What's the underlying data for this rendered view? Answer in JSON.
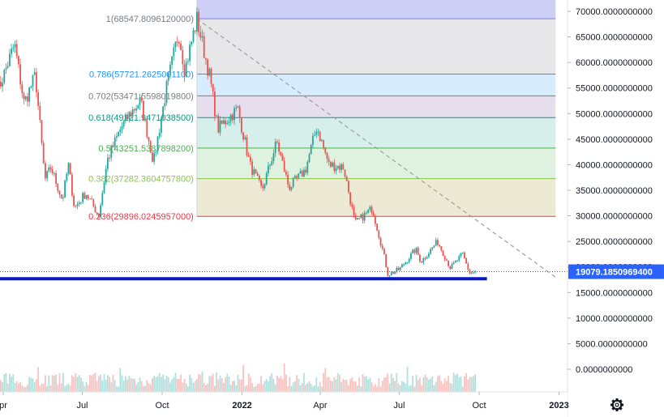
{
  "chart_data": {
    "type": "candlestick",
    "price_axis": {
      "ticks": [
        {
          "value": 70000,
          "label": "70000.0000000000"
        },
        {
          "value": 65000,
          "label": "65000.0000000000"
        },
        {
          "value": 60000,
          "label": "60000.0000000000"
        },
        {
          "value": 55000,
          "label": "55000.0000000000"
        },
        {
          "value": 50000,
          "label": "50000.0000000000"
        },
        {
          "value": 45000,
          "label": "45000.0000000000"
        },
        {
          "value": 40000,
          "label": "40000.0000000000"
        },
        {
          "value": 35000,
          "label": "35000.0000000000"
        },
        {
          "value": 30000,
          "label": "30000.0000000000"
        },
        {
          "value": 25000,
          "label": "25000.0000000000"
        },
        {
          "value": 20000,
          "label": "20000.0000000000"
        },
        {
          "value": 15000,
          "label": "15000.0000000000"
        },
        {
          "value": 10000,
          "label": "10000.0000000000"
        },
        {
          "value": 5000,
          "label": "5000.0000000000"
        },
        {
          "value": 0,
          "label": "0.0000000000"
        }
      ],
      "range": [
        -1500,
        72000
      ]
    },
    "time_axis": {
      "ticks": [
        {
          "label": "pr",
          "date": "2021-04-01",
          "bold": false
        },
        {
          "label": "Jul",
          "date": "2021-07-01",
          "bold": false
        },
        {
          "label": "Oct",
          "date": "2021-10-01",
          "bold": false
        },
        {
          "label": "2022",
          "date": "2022-01-01",
          "bold": true
        },
        {
          "label": "Apr",
          "date": "2022-04-01",
          "bold": false
        },
        {
          "label": "Jul",
          "date": "2022-07-01",
          "bold": false
        },
        {
          "label": "Oct",
          "date": "2022-10-01",
          "bold": false
        },
        {
          "label": "2023",
          "date": "2023-01-01",
          "bold": true
        }
      ]
    },
    "current_price": {
      "value": 19079.18509694,
      "label": "19079.1850969400",
      "color": "#2962ff"
    },
    "support_line": {
      "value": 17700,
      "color": "#0c19c9",
      "end_date": "2022-10-10"
    },
    "trend_line": {
      "start": {
        "date": "2021-11-10",
        "value": 68547.8
      },
      "end": {
        "date": "2022-12-28",
        "value": 18000
      },
      "color": "#9e9e9e"
    },
    "fibonacci": {
      "start_date": "2021-11-10",
      "end_date": "2022-12-28",
      "levels": [
        {
          "ratio": "1",
          "price": 68547.809612,
          "label": "1(68547.8096120000)",
          "color": "#787b86",
          "fill": "rgba(120,123,134,0.18)"
        },
        {
          "ratio": "0.786",
          "price": 57721.26250011,
          "label": "0.786(57721.2625001100)",
          "color": "#2196f3",
          "fill": "rgba(33,150,243,0.18)"
        },
        {
          "ratio": "0.702",
          "price": 53471.55980198,
          "label": "0.702(53471.5598019800)",
          "color": "#787b86",
          "fill": "rgba(142,104,168,0.22)"
        },
        {
          "ratio": "0.618",
          "price": 49221.94710385,
          "label": "0.618(49221.9471038500)",
          "color": "#089981",
          "fill": "rgba(8,153,129,0.16)"
        },
        {
          "ratio": "0.5",
          "price": 43251.53878982,
          "label": "0.5(43251.5387898200)",
          "color": "#4caf50",
          "fill": "rgba(76,175,80,0.18)"
        },
        {
          "ratio": "0.382",
          "price": 37282.36047578,
          "label": "0.382(37282.3604757800)",
          "color": "#8bc34a",
          "fill": "rgba(170,160,60,0.22)"
        },
        {
          "ratio": "0.236",
          "price": 29896.0245957,
          "label": "0.236(29896.0245957000)",
          "color": "#f23645",
          "fill": "rgba(200,140,60,0.28)"
        }
      ],
      "top_band": {
        "price_to": 72000,
        "fill": "rgba(98,108,220,0.32)",
        "line_color": "#7b7ff0"
      }
    },
    "price_path": [
      {
        "date": "2021-03-25",
        "value": 54000
      },
      {
        "date": "2021-04-14",
        "value": 63500
      },
      {
        "date": "2021-04-25",
        "value": 52000
      },
      {
        "date": "2021-05-08",
        "value": 57500
      },
      {
        "date": "2021-05-19",
        "value": 37000
      },
      {
        "date": "2021-05-26",
        "value": 39500
      },
      {
        "date": "2021-06-08",
        "value": 33000
      },
      {
        "date": "2021-06-15",
        "value": 40000
      },
      {
        "date": "2021-06-22",
        "value": 31500
      },
      {
        "date": "2021-07-05",
        "value": 34500
      },
      {
        "date": "2021-07-20",
        "value": 30000
      },
      {
        "date": "2021-07-30",
        "value": 41000
      },
      {
        "date": "2021-08-14",
        "value": 47000
      },
      {
        "date": "2021-08-23",
        "value": 49500
      },
      {
        "date": "2021-09-06",
        "value": 52500
      },
      {
        "date": "2021-09-21",
        "value": 40500
      },
      {
        "date": "2021-10-06",
        "value": 55000
      },
      {
        "date": "2021-10-20",
        "value": 66000
      },
      {
        "date": "2021-10-27",
        "value": 58500
      },
      {
        "date": "2021-11-10",
        "value": 68500
      },
      {
        "date": "2021-11-25",
        "value": 57000
      },
      {
        "date": "2021-12-04",
        "value": 47000
      },
      {
        "date": "2021-12-27",
        "value": 51000
      },
      {
        "date": "2022-01-10",
        "value": 40000
      },
      {
        "date": "2022-01-24",
        "value": 35000
      },
      {
        "date": "2022-02-10",
        "value": 44500
      },
      {
        "date": "2022-02-24",
        "value": 35500
      },
      {
        "date": "2022-03-15",
        "value": 39000
      },
      {
        "date": "2022-03-28",
        "value": 47500
      },
      {
        "date": "2022-04-11",
        "value": 40000
      },
      {
        "date": "2022-04-28",
        "value": 39500
      },
      {
        "date": "2022-05-11",
        "value": 28500
      },
      {
        "date": "2022-05-31",
        "value": 31500
      },
      {
        "date": "2022-06-13",
        "value": 22500
      },
      {
        "date": "2022-06-18",
        "value": 18500
      },
      {
        "date": "2022-07-01",
        "value": 19500
      },
      {
        "date": "2022-07-20",
        "value": 23500
      },
      {
        "date": "2022-07-26",
        "value": 21000
      },
      {
        "date": "2022-08-14",
        "value": 25000
      },
      {
        "date": "2022-08-29",
        "value": 19800
      },
      {
        "date": "2022-09-12",
        "value": 22500
      },
      {
        "date": "2022-09-20",
        "value": 18800
      },
      {
        "date": "2022-09-28",
        "value": 19079
      }
    ]
  },
  "icons": {
    "settings": "gear-icon"
  }
}
